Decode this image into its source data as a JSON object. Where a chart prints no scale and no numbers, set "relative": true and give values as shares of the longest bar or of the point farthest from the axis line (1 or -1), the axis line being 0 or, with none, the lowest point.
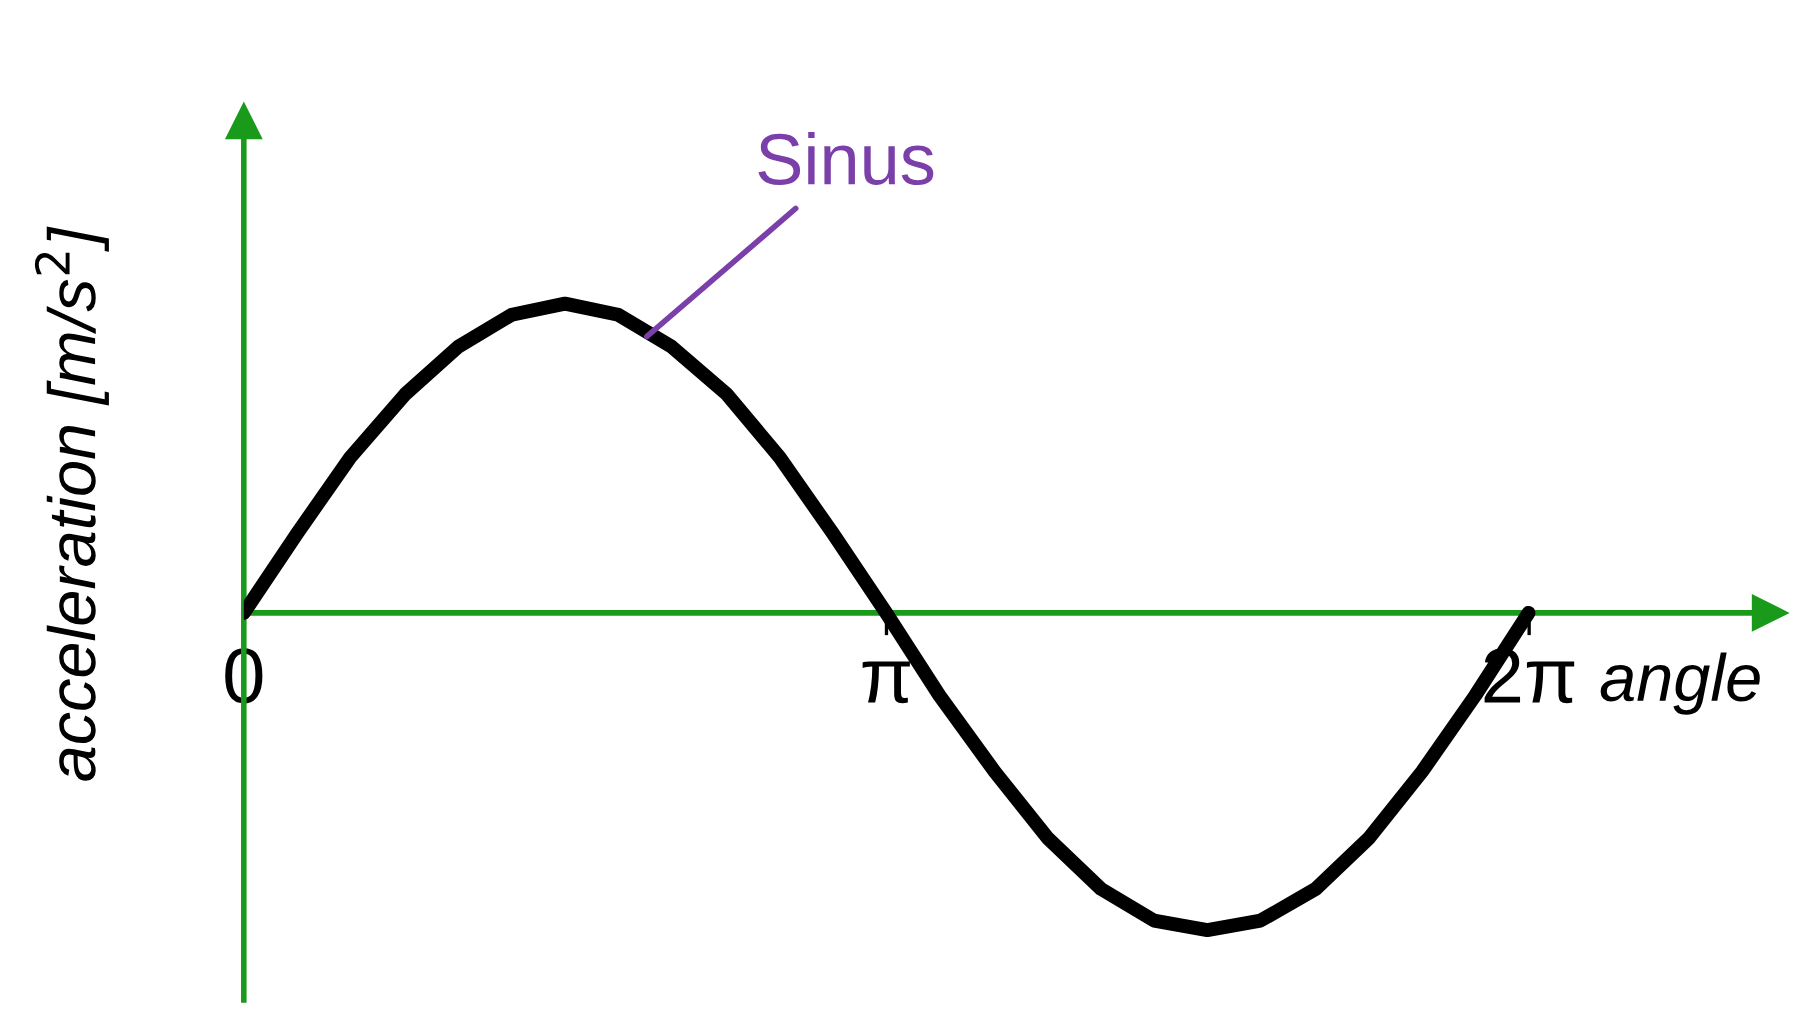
{
  "chart_data": {
    "type": "line",
    "relative": true,
    "xlabel": "angle",
    "ylabel": "acceleration [m/s$^{2}$]",
    "x": [
      0,
      0.26,
      0.52,
      0.79,
      1.05,
      1.31,
      1.57,
      1.83,
      2.09,
      2.36,
      2.62,
      2.88,
      3.14,
      3.4,
      3.67,
      3.93,
      4.19,
      4.45,
      4.71,
      4.97,
      5.24,
      5.5,
      5.76,
      6.02,
      6.28
    ],
    "series": [
      {
        "color": "#000000",
        "values": [
          0,
          0.25,
          0.49,
          0.69,
          0.84,
          0.94,
          0.975,
          0.94,
          0.84,
          0.69,
          0.49,
          0.25,
          0,
          -0.26,
          -0.5,
          -0.71,
          -0.87,
          -0.97,
          -1,
          -0.97,
          -0.87,
          -0.71,
          -0.5,
          -0.26,
          0
        ]
      }
    ],
    "xlim": [
      0,
      7.46
    ],
    "xticks": [
      {
        "value": 0,
        "label": "0"
      },
      {
        "value": 3.1416,
        "label": "π"
      },
      {
        "value": 6.2832,
        "label": "2π"
      }
    ],
    "annotations": [
      {
        "text": "Sinus",
        "x": 1.95,
        "y": 0.86
      }
    ],
    "grid": false,
    "legend": false,
    "marker": "none",
    "line_style": "solid"
  }
}
